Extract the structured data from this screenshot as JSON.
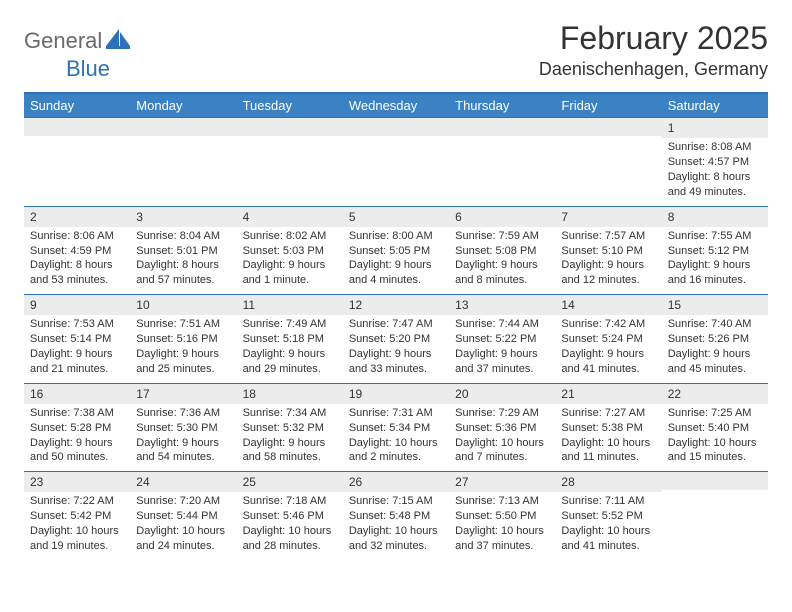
{
  "logo": {
    "general": "General",
    "blue": "Blue"
  },
  "title": "February 2025",
  "location": "Daenischenhagen, Germany",
  "colors": {
    "header_bg": "#3b82c4",
    "header_border": "#2b72b8",
    "daynum_bg": "#ececec",
    "text": "#333333",
    "logo_grey": "#6a6a6a",
    "logo_blue": "#2b72b8"
  },
  "day_names": [
    "Sunday",
    "Monday",
    "Tuesday",
    "Wednesday",
    "Thursday",
    "Friday",
    "Saturday"
  ],
  "weeks": [
    [
      {
        "day": "",
        "sunrise": "",
        "sunset": "",
        "daylight": ""
      },
      {
        "day": "",
        "sunrise": "",
        "sunset": "",
        "daylight": ""
      },
      {
        "day": "",
        "sunrise": "",
        "sunset": "",
        "daylight": ""
      },
      {
        "day": "",
        "sunrise": "",
        "sunset": "",
        "daylight": ""
      },
      {
        "day": "",
        "sunrise": "",
        "sunset": "",
        "daylight": ""
      },
      {
        "day": "",
        "sunrise": "",
        "sunset": "",
        "daylight": ""
      },
      {
        "day": "1",
        "sunrise": "Sunrise: 8:08 AM",
        "sunset": "Sunset: 4:57 PM",
        "daylight": "Daylight: 8 hours and 49 minutes."
      }
    ],
    [
      {
        "day": "2",
        "sunrise": "Sunrise: 8:06 AM",
        "sunset": "Sunset: 4:59 PM",
        "daylight": "Daylight: 8 hours and 53 minutes."
      },
      {
        "day": "3",
        "sunrise": "Sunrise: 8:04 AM",
        "sunset": "Sunset: 5:01 PM",
        "daylight": "Daylight: 8 hours and 57 minutes."
      },
      {
        "day": "4",
        "sunrise": "Sunrise: 8:02 AM",
        "sunset": "Sunset: 5:03 PM",
        "daylight": "Daylight: 9 hours and 1 minute."
      },
      {
        "day": "5",
        "sunrise": "Sunrise: 8:00 AM",
        "sunset": "Sunset: 5:05 PM",
        "daylight": "Daylight: 9 hours and 4 minutes."
      },
      {
        "day": "6",
        "sunrise": "Sunrise: 7:59 AM",
        "sunset": "Sunset: 5:08 PM",
        "daylight": "Daylight: 9 hours and 8 minutes."
      },
      {
        "day": "7",
        "sunrise": "Sunrise: 7:57 AM",
        "sunset": "Sunset: 5:10 PM",
        "daylight": "Daylight: 9 hours and 12 minutes."
      },
      {
        "day": "8",
        "sunrise": "Sunrise: 7:55 AM",
        "sunset": "Sunset: 5:12 PM",
        "daylight": "Daylight: 9 hours and 16 minutes."
      }
    ],
    [
      {
        "day": "9",
        "sunrise": "Sunrise: 7:53 AM",
        "sunset": "Sunset: 5:14 PM",
        "daylight": "Daylight: 9 hours and 21 minutes."
      },
      {
        "day": "10",
        "sunrise": "Sunrise: 7:51 AM",
        "sunset": "Sunset: 5:16 PM",
        "daylight": "Daylight: 9 hours and 25 minutes."
      },
      {
        "day": "11",
        "sunrise": "Sunrise: 7:49 AM",
        "sunset": "Sunset: 5:18 PM",
        "daylight": "Daylight: 9 hours and 29 minutes."
      },
      {
        "day": "12",
        "sunrise": "Sunrise: 7:47 AM",
        "sunset": "Sunset: 5:20 PM",
        "daylight": "Daylight: 9 hours and 33 minutes."
      },
      {
        "day": "13",
        "sunrise": "Sunrise: 7:44 AM",
        "sunset": "Sunset: 5:22 PM",
        "daylight": "Daylight: 9 hours and 37 minutes."
      },
      {
        "day": "14",
        "sunrise": "Sunrise: 7:42 AM",
        "sunset": "Sunset: 5:24 PM",
        "daylight": "Daylight: 9 hours and 41 minutes."
      },
      {
        "day": "15",
        "sunrise": "Sunrise: 7:40 AM",
        "sunset": "Sunset: 5:26 PM",
        "daylight": "Daylight: 9 hours and 45 minutes."
      }
    ],
    [
      {
        "day": "16",
        "sunrise": "Sunrise: 7:38 AM",
        "sunset": "Sunset: 5:28 PM",
        "daylight": "Daylight: 9 hours and 50 minutes."
      },
      {
        "day": "17",
        "sunrise": "Sunrise: 7:36 AM",
        "sunset": "Sunset: 5:30 PM",
        "daylight": "Daylight: 9 hours and 54 minutes."
      },
      {
        "day": "18",
        "sunrise": "Sunrise: 7:34 AM",
        "sunset": "Sunset: 5:32 PM",
        "daylight": "Daylight: 9 hours and 58 minutes."
      },
      {
        "day": "19",
        "sunrise": "Sunrise: 7:31 AM",
        "sunset": "Sunset: 5:34 PM",
        "daylight": "Daylight: 10 hours and 2 minutes."
      },
      {
        "day": "20",
        "sunrise": "Sunrise: 7:29 AM",
        "sunset": "Sunset: 5:36 PM",
        "daylight": "Daylight: 10 hours and 7 minutes."
      },
      {
        "day": "21",
        "sunrise": "Sunrise: 7:27 AM",
        "sunset": "Sunset: 5:38 PM",
        "daylight": "Daylight: 10 hours and 11 minutes."
      },
      {
        "day": "22",
        "sunrise": "Sunrise: 7:25 AM",
        "sunset": "Sunset: 5:40 PM",
        "daylight": "Daylight: 10 hours and 15 minutes."
      }
    ],
    [
      {
        "day": "23",
        "sunrise": "Sunrise: 7:22 AM",
        "sunset": "Sunset: 5:42 PM",
        "daylight": "Daylight: 10 hours and 19 minutes."
      },
      {
        "day": "24",
        "sunrise": "Sunrise: 7:20 AM",
        "sunset": "Sunset: 5:44 PM",
        "daylight": "Daylight: 10 hours and 24 minutes."
      },
      {
        "day": "25",
        "sunrise": "Sunrise: 7:18 AM",
        "sunset": "Sunset: 5:46 PM",
        "daylight": "Daylight: 10 hours and 28 minutes."
      },
      {
        "day": "26",
        "sunrise": "Sunrise: 7:15 AM",
        "sunset": "Sunset: 5:48 PM",
        "daylight": "Daylight: 10 hours and 32 minutes."
      },
      {
        "day": "27",
        "sunrise": "Sunrise: 7:13 AM",
        "sunset": "Sunset: 5:50 PM",
        "daylight": "Daylight: 10 hours and 37 minutes."
      },
      {
        "day": "28",
        "sunrise": "Sunrise: 7:11 AM",
        "sunset": "Sunset: 5:52 PM",
        "daylight": "Daylight: 10 hours and 41 minutes."
      },
      {
        "day": "",
        "sunrise": "",
        "sunset": "",
        "daylight": ""
      }
    ]
  ]
}
